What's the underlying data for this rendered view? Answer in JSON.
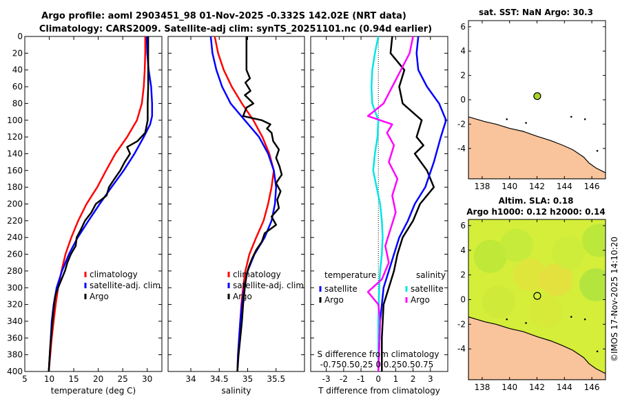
{
  "title": {
    "line1": "Argo profile: aoml 2903451_98 01-Nov-2025 -0.332S 142.02E (NRT data)",
    "line2": "Climatology: CARS2009. Satellite-adj clim: synTS_20251101.nc (0.94d earlier)"
  },
  "watermark": "©IMOS 17-Nov-2025 14:10:20",
  "colors": {
    "climatology": "#ff0000",
    "satellite": "#0000ff",
    "argo": "#000000",
    "sat_diff": "#00e5e5",
    "sal_diff": "#ff00ff",
    "land": "#f9c49c",
    "sla_field": "#d4ee3a"
  },
  "chart_data": [
    {
      "type": "line",
      "id": "temperature",
      "xlabel": "temperature (deg C)",
      "ylabel": "",
      "xlim": [
        5,
        33
      ],
      "ylim": [
        400,
        0
      ],
      "xticks": [
        5,
        10,
        15,
        20,
        25,
        30
      ],
      "yticks": [
        0,
        20,
        40,
        60,
        80,
        100,
        120,
        140,
        160,
        180,
        200,
        220,
        240,
        260,
        280,
        300,
        320,
        340,
        360,
        380,
        400
      ],
      "legend": [
        "climatology",
        "satellite-adj. clim",
        "Argo"
      ],
      "legend_position": "bottom-right",
      "series": [
        {
          "name": "climatology",
          "color": "#ff0000",
          "points": [
            [
              29.6,
              0
            ],
            [
              29.6,
              20
            ],
            [
              29.5,
              40
            ],
            [
              29.3,
              60
            ],
            [
              28.9,
              80
            ],
            [
              27.9,
              100
            ],
            [
              25.9,
              120
            ],
            [
              23.5,
              140
            ],
            [
              21.6,
              160
            ],
            [
              19.8,
              180
            ],
            [
              17.6,
              200
            ],
            [
              15.9,
              220
            ],
            [
              14.5,
              240
            ],
            [
              13.3,
              260
            ],
            [
              12.5,
              280
            ],
            [
              11.8,
              300
            ],
            [
              11.3,
              320
            ],
            [
              10.9,
              340
            ],
            [
              10.5,
              360
            ],
            [
              10.2,
              380
            ],
            [
              9.9,
              400
            ]
          ]
        },
        {
          "name": "satellite-adj. clim",
          "color": "#0000ff",
          "points": [
            [
              29.9,
              0
            ],
            [
              30.0,
              20
            ],
            [
              30.3,
              40
            ],
            [
              30.8,
              60
            ],
            [
              31.0,
              80
            ],
            [
              31.0,
              95
            ],
            [
              30.6,
              105
            ],
            [
              29.3,
              120
            ],
            [
              27.4,
              140
            ],
            [
              25.2,
              160
            ],
            [
              22.7,
              180
            ],
            [
              20.3,
              200
            ],
            [
              18.0,
              220
            ],
            [
              15.8,
              240
            ],
            [
              14.0,
              260
            ],
            [
              12.6,
              280
            ],
            [
              11.5,
              300
            ],
            [
              10.9,
              320
            ],
            [
              10.5,
              340
            ],
            [
              10.3,
              360
            ],
            [
              10.1,
              380
            ],
            [
              9.9,
              400
            ]
          ]
        },
        {
          "name": "Argo",
          "color": "#000000",
          "points": [
            [
              30.2,
              0
            ],
            [
              30.2,
              20
            ],
            [
              30.2,
              40
            ],
            [
              30.2,
              60
            ],
            [
              30.1,
              80
            ],
            [
              30.1,
              100
            ],
            [
              29.6,
              115
            ],
            [
              28.0,
              125
            ],
            [
              25.9,
              132
            ],
            [
              26.5,
              140
            ],
            [
              25.4,
              150
            ],
            [
              24.5,
              160
            ],
            [
              23.3,
              170
            ],
            [
              22.2,
              180
            ],
            [
              21.7,
              190
            ],
            [
              19.5,
              200
            ],
            [
              18.6,
              210
            ],
            [
              17.3,
              220
            ],
            [
              16.5,
              230
            ],
            [
              15.6,
              240
            ],
            [
              15.4,
              250
            ],
            [
              14.4,
              260
            ],
            [
              13.7,
              270
            ],
            [
              13.2,
              280
            ],
            [
              12.5,
              290
            ],
            [
              11.8,
              300
            ],
            [
              11.2,
              310
            ],
            [
              10.8,
              330
            ],
            [
              10.5,
              350
            ],
            [
              10.2,
              370
            ],
            [
              10.0,
              390
            ],
            [
              9.9,
              400
            ]
          ]
        }
      ]
    },
    {
      "type": "line",
      "id": "salinity",
      "xlabel": "salinity",
      "xlim": [
        33.6,
        36.0
      ],
      "ylim": [
        400,
        0
      ],
      "xticks": [
        34,
        34.5,
        35,
        35.5
      ],
      "legend": [
        "climatology",
        "satellite-adj. clim",
        "Argo"
      ],
      "legend_position": "bottom-right",
      "series": [
        {
          "name": "climatology",
          "color": "#ff0000",
          "points": [
            [
              34.42,
              0
            ],
            [
              34.48,
              20
            ],
            [
              34.58,
              40
            ],
            [
              34.72,
              60
            ],
            [
              34.9,
              80
            ],
            [
              35.1,
              100
            ],
            [
              35.26,
              120
            ],
            [
              35.38,
              140
            ],
            [
              35.46,
              160
            ],
            [
              35.42,
              180
            ],
            [
              35.36,
              200
            ],
            [
              35.28,
              220
            ],
            [
              35.15,
              240
            ],
            [
              35.03,
              260
            ],
            [
              34.96,
              280
            ],
            [
              34.92,
              300
            ],
            [
              34.89,
              320
            ],
            [
              34.87,
              340
            ],
            [
              34.85,
              360
            ],
            [
              34.83,
              380
            ],
            [
              34.82,
              400
            ]
          ]
        },
        {
          "name": "satellite-adj. clim",
          "color": "#0000ff",
          "points": [
            [
              34.35,
              0
            ],
            [
              34.38,
              20
            ],
            [
              34.45,
              40
            ],
            [
              34.55,
              60
            ],
            [
              34.7,
              80
            ],
            [
              34.95,
              100
            ],
            [
              35.2,
              120
            ],
            [
              35.36,
              140
            ],
            [
              35.46,
              160
            ],
            [
              35.5,
              180
            ],
            [
              35.48,
              200
            ],
            [
              35.42,
              220
            ],
            [
              35.3,
              240
            ],
            [
              35.12,
              260
            ],
            [
              35.0,
              280
            ],
            [
              34.94,
              300
            ],
            [
              34.9,
              320
            ],
            [
              34.87,
              340
            ],
            [
              34.85,
              360
            ],
            [
              34.83,
              380
            ],
            [
              34.82,
              400
            ]
          ]
        },
        {
          "name": "Argo",
          "color": "#000000",
          "points": [
            [
              34.98,
              0
            ],
            [
              34.98,
              40
            ],
            [
              35.04,
              50
            ],
            [
              34.96,
              55
            ],
            [
              35.05,
              65
            ],
            [
              34.95,
              70
            ],
            [
              35.1,
              80
            ],
            [
              34.98,
              85
            ],
            [
              34.92,
              95
            ],
            [
              35.25,
              100
            ],
            [
              35.4,
              105
            ],
            [
              35.34,
              110
            ],
            [
              35.42,
              115
            ],
            [
              35.45,
              125
            ],
            [
              35.55,
              135
            ],
            [
              35.5,
              145
            ],
            [
              35.56,
              155
            ],
            [
              35.6,
              165
            ],
            [
              35.5,
              175
            ],
            [
              35.58,
              185
            ],
            [
              35.52,
              195
            ],
            [
              35.55,
              205
            ],
            [
              35.42,
              215
            ],
            [
              35.5,
              225
            ],
            [
              35.3,
              235
            ],
            [
              35.25,
              245
            ],
            [
              35.15,
              255
            ],
            [
              35.08,
              265
            ],
            [
              35.02,
              275
            ],
            [
              34.98,
              285
            ],
            [
              34.95,
              300
            ],
            [
              34.92,
              320
            ],
            [
              34.9,
              340
            ],
            [
              34.87,
              360
            ],
            [
              34.84,
              380
            ],
            [
              34.82,
              400
            ]
          ]
        }
      ]
    },
    {
      "type": "line",
      "id": "difference",
      "xlabel": "T difference from climatology",
      "xlim": [
        -3.9,
        4.0
      ],
      "ylim": [
        400,
        0
      ],
      "xticks": [
        -3,
        -2,
        -1,
        0,
        1,
        2,
        3
      ],
      "top_axis_label": "S difference from climatology",
      "top_ticks": [
        -0.75,
        -0.5,
        0.25,
        0,
        0.25,
        0.5,
        0.75
      ],
      "top_ticks_text": "-0.750.50.25  0 0.250.50.75",
      "legend_left": {
        "header": "temperature",
        "items": [
          "satellite",
          "Argo"
        ]
      },
      "legend_right": {
        "header": "salinity",
        "items": [
          "satellite",
          "Argo"
        ]
      },
      "series": [
        {
          "name": "T satellite",
          "color": "#00e5e5",
          "points": [
            [
              0.0,
              0
            ],
            [
              -0.2,
              20
            ],
            [
              -0.35,
              40
            ],
            [
              -0.4,
              60
            ],
            [
              -0.35,
              80
            ],
            [
              0.0,
              100
            ],
            [
              -0.05,
              120
            ],
            [
              -0.2,
              140
            ],
            [
              -0.3,
              160
            ],
            [
              -0.1,
              180
            ],
            [
              0.1,
              200
            ],
            [
              0.2,
              220
            ],
            [
              0.25,
              240
            ],
            [
              0.2,
              260
            ],
            [
              0.1,
              280
            ],
            [
              0.05,
              300
            ],
            [
              0.0,
              340
            ],
            [
              0.0,
              400
            ]
          ]
        },
        {
          "name": "T Argo",
          "color": "#000000",
          "points": [
            [
              0.8,
              0
            ],
            [
              0.7,
              20
            ],
            [
              1.5,
              40
            ],
            [
              1.2,
              60
            ],
            [
              1.4,
              80
            ],
            [
              2.5,
              100
            ],
            [
              2.2,
              120
            ],
            [
              2.6,
              130
            ],
            [
              2.1,
              140
            ],
            [
              2.8,
              160
            ],
            [
              3.2,
              180
            ],
            [
              2.4,
              200
            ],
            [
              2.0,
              220
            ],
            [
              1.4,
              240
            ],
            [
              1.1,
              260
            ],
            [
              0.9,
              280
            ],
            [
              0.6,
              300
            ],
            [
              0.3,
              320
            ],
            [
              0.2,
              360
            ],
            [
              0.2,
              400
            ]
          ]
        },
        {
          "name": "S satellite",
          "color": "#0000ff",
          "points": [
            [
              2.3,
              0
            ],
            [
              2.2,
              20
            ],
            [
              2.3,
              40
            ],
            [
              2.8,
              60
            ],
            [
              3.5,
              80
            ],
            [
              3.9,
              100
            ],
            [
              3.6,
              120
            ],
            [
              3.2,
              150
            ],
            [
              2.7,
              180
            ],
            [
              2.1,
              200
            ],
            [
              1.7,
              220
            ],
            [
              1.2,
              240
            ],
            [
              0.9,
              260
            ],
            [
              0.6,
              280
            ],
            [
              0.3,
              300
            ],
            [
              0.1,
              340
            ],
            [
              0.0,
              400
            ]
          ]
        },
        {
          "name": "S Argo",
          "color": "#ff00ff",
          "points": [
            [
              2.0,
              0
            ],
            [
              1.8,
              20
            ],
            [
              1.3,
              40
            ],
            [
              0.8,
              60
            ],
            [
              0.3,
              80
            ],
            [
              -0.6,
              95
            ],
            [
              0.8,
              105
            ],
            [
              0.5,
              115
            ],
            [
              0.9,
              130
            ],
            [
              0.6,
              150
            ],
            [
              1.1,
              170
            ],
            [
              0.8,
              190
            ],
            [
              1.0,
              210
            ],
            [
              0.7,
              230
            ],
            [
              0.4,
              250
            ],
            [
              0.6,
              270
            ],
            [
              0.2,
              290
            ],
            [
              -0.6,
              305
            ],
            [
              0.0,
              320
            ],
            [
              0.1,
              340
            ],
            [
              0.0,
              400
            ]
          ]
        }
      ]
    },
    {
      "type": "scatter",
      "id": "sst_map",
      "title": "sat. SST: NaN Argo: 30.3",
      "xlim": [
        137,
        147
      ],
      "ylim": [
        -6.5,
        6.5
      ],
      "xticks": [
        138,
        140,
        142,
        144,
        146
      ],
      "yticks": [
        -4,
        -2,
        0,
        2,
        4,
        6
      ],
      "float_position": [
        142.02,
        0.3
      ]
    },
    {
      "type": "heatmap",
      "id": "sla_map",
      "title_line1": "Altim. SLA: 0.18",
      "title_line2": "Argo h1000: 0.12 h2000: 0.14",
      "xlim": [
        137,
        147
      ],
      "ylim": [
        -6.5,
        6.5
      ],
      "xticks": [
        138,
        140,
        142,
        144,
        146
      ],
      "yticks": [
        -4,
        -2,
        0,
        2,
        4,
        6
      ],
      "float_position": [
        142.02,
        0.3
      ]
    }
  ]
}
